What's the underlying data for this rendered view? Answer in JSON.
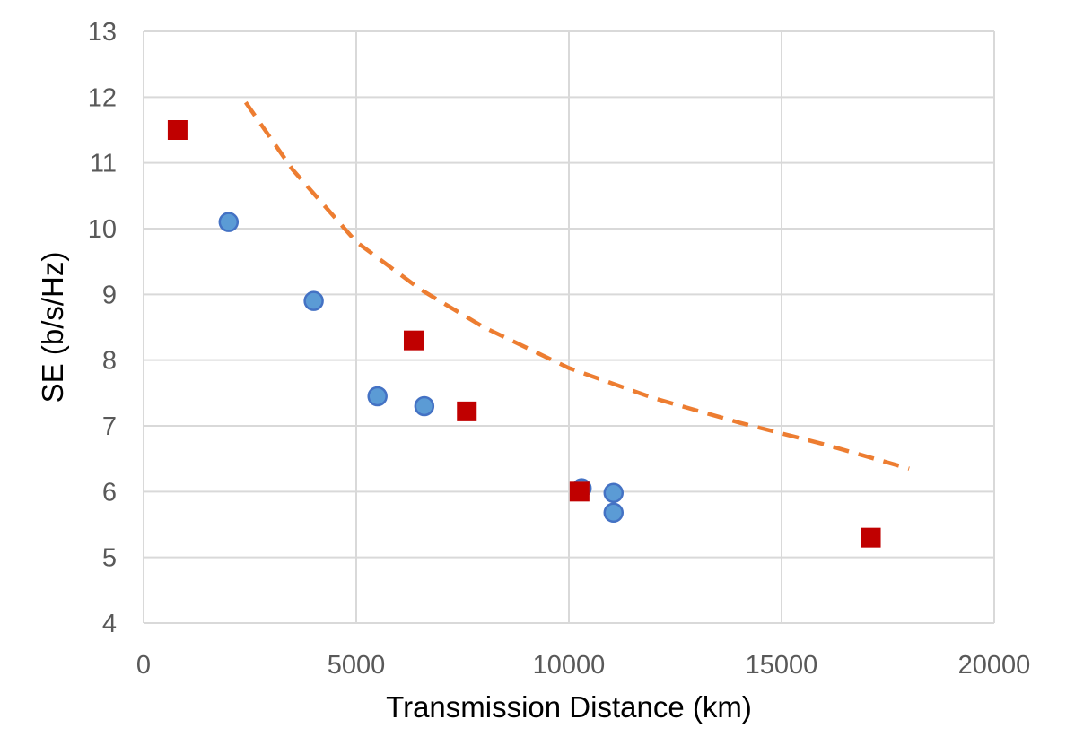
{
  "chart_data": {
    "type": "scatter",
    "title": "",
    "xlabel": "Transmission Distance (km)",
    "ylabel": "SE (b/s/Hz)",
    "xlim": [
      0,
      20000
    ],
    "ylim": [
      4,
      13
    ],
    "xticks": [
      0,
      5000,
      10000,
      15000,
      20000
    ],
    "yticks": [
      4,
      5,
      6,
      7,
      8,
      9,
      10,
      11,
      12,
      13
    ],
    "grid": true,
    "legend": "none",
    "series": [
      {
        "marker": "circle",
        "color": "#5b9bd5",
        "points": [
          {
            "x": 2000,
            "y": 10.1
          },
          {
            "x": 4000,
            "y": 8.9
          },
          {
            "x": 5500,
            "y": 7.45
          },
          {
            "x": 6600,
            "y": 7.3
          },
          {
            "x": 10300,
            "y": 6.05
          },
          {
            "x": 11050,
            "y": 5.98
          },
          {
            "x": 11050,
            "y": 5.68
          }
        ]
      },
      {
        "marker": "square",
        "color": "#c00000",
        "points": [
          {
            "x": 800,
            "y": 11.5
          },
          {
            "x": 6350,
            "y": 8.3
          },
          {
            "x": 7600,
            "y": 7.22
          },
          {
            "x": 10250,
            "y": 6.0
          },
          {
            "x": 17100,
            "y": 5.3
          }
        ]
      },
      {
        "marker": "dashed-line",
        "color": "#ed7d31",
        "points": [
          {
            "x": 2400,
            "y": 11.92
          },
          {
            "x": 3500,
            "y": 10.9
          },
          {
            "x": 5000,
            "y": 9.8
          },
          {
            "x": 6500,
            "y": 9.08
          },
          {
            "x": 8000,
            "y": 8.5
          },
          {
            "x": 10000,
            "y": 7.88
          },
          {
            "x": 12000,
            "y": 7.42
          },
          {
            "x": 14000,
            "y": 7.05
          },
          {
            "x": 16000,
            "y": 6.72
          },
          {
            "x": 18000,
            "y": 6.35
          }
        ]
      }
    ]
  }
}
